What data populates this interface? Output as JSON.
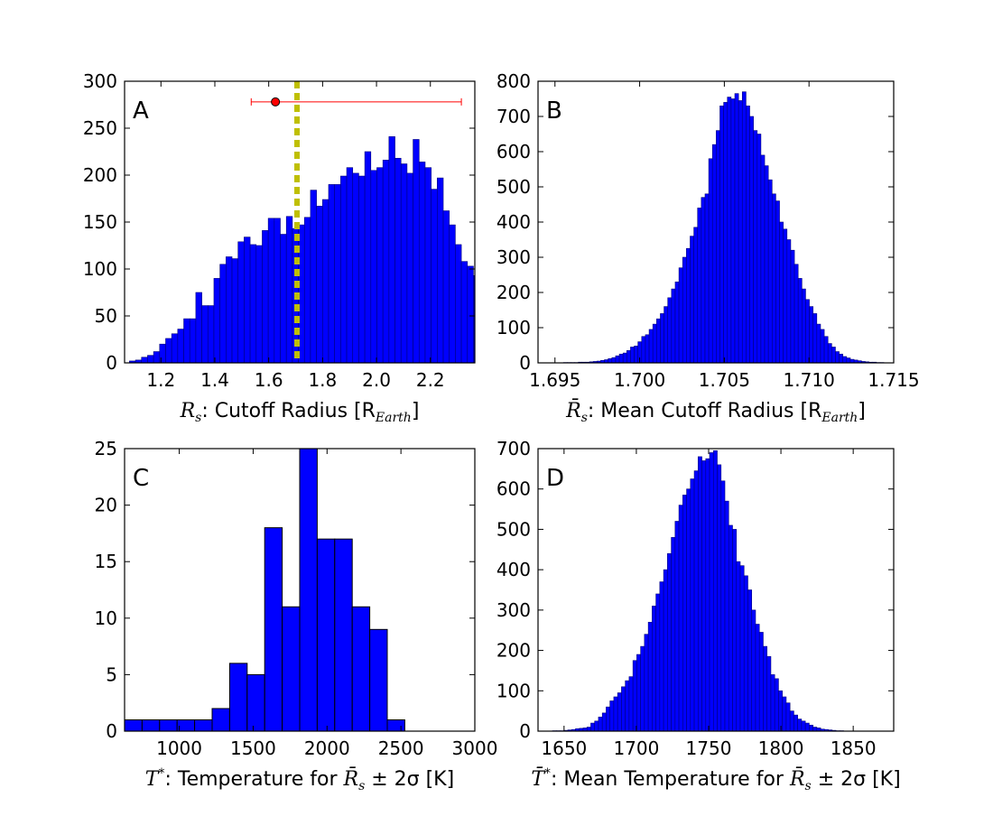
{
  "chart_data": [
    {
      "id": "A",
      "type": "bar",
      "panel_label": "A",
      "xlabel": {
        "math": "R",
        "sub": "s",
        "text": ": Cutoff Radius [R",
        "unit_sub": "Earth",
        "tail": "]"
      },
      "xlim": [
        1.065,
        2.365
      ],
      "ylim": [
        0,
        300
      ],
      "xticks": [
        1.2,
        1.4,
        1.6,
        1.8,
        2.0,
        2.2
      ],
      "xtick_labels": [
        "1.2",
        "1.4",
        "1.6",
        "1.8",
        "2.0",
        "2.2"
      ],
      "yticks": [
        0,
        50,
        100,
        150,
        200,
        250,
        300
      ],
      "ytick_labels": [
        "0",
        "50",
        "100",
        "150",
        "200",
        "250",
        "300"
      ],
      "bin_start": 1.083,
      "bin_width": 0.0224,
      "values": [
        2,
        3,
        6,
        8,
        12,
        20,
        26,
        31,
        36,
        47,
        47,
        75,
        61,
        61,
        90,
        105,
        113,
        111,
        129,
        134,
        126,
        125,
        141,
        154,
        154,
        137,
        156,
        143,
        147,
        155,
        184,
        167,
        174,
        190,
        190,
        199,
        208,
        202,
        199,
        225,
        205,
        208,
        216,
        241,
        218,
        212,
        202,
        238,
        214,
        208,
        185,
        197,
        162,
        147,
        126,
        108,
        103,
        93,
        65,
        48,
        32,
        20,
        14,
        9,
        7,
        5,
        4,
        4,
        3
      ],
      "reference_line": {
        "x": 1.705,
        "color": "#bfbf00",
        "style": "dashed"
      },
      "point": {
        "x": 1.625,
        "y": 278,
        "x_low": 1.535,
        "x_high": 2.315,
        "color": "#ff0000"
      }
    },
    {
      "id": "B",
      "type": "bar",
      "panel_label": "B",
      "xlabel": {
        "math": "R̄",
        "sub": "s",
        "text": ": Mean Cutoff Radius [R",
        "unit_sub": "Earth",
        "tail": "]"
      },
      "xlim": [
        1.694,
        1.715
      ],
      "ylim": [
        0,
        800
      ],
      "xticks": [
        1.695,
        1.7,
        1.705,
        1.71,
        1.715
      ],
      "xtick_labels": [
        "1.695",
        "1.700",
        "1.705",
        "1.710",
        "1.715"
      ],
      "yticks": [
        0,
        100,
        200,
        300,
        400,
        500,
        600,
        700,
        800
      ],
      "ytick_labels": [
        "0",
        "100",
        "200",
        "300",
        "400",
        "500",
        "600",
        "700",
        "800"
      ],
      "bin_start": 1.6955,
      "bin_width": 0.00022,
      "values": [
        1,
        1,
        1,
        1,
        2,
        2,
        2,
        3,
        4,
        5,
        7,
        9,
        12,
        15,
        20,
        25,
        28,
        35,
        45,
        48,
        60,
        75,
        80,
        95,
        110,
        125,
        140,
        160,
        185,
        210,
        230,
        270,
        300,
        325,
        360,
        385,
        440,
        470,
        480,
        580,
        620,
        660,
        730,
        740,
        755,
        750,
        765,
        745,
        770,
        730,
        700,
        660,
        650,
        590,
        560,
        520,
        480,
        460,
        400,
        380,
        350,
        320,
        280,
        240,
        210,
        180,
        160,
        140,
        110,
        95,
        75,
        55,
        45,
        32,
        25,
        18,
        14,
        10,
        8,
        6,
        4,
        3,
        2,
        2,
        1,
        1
      ]
    },
    {
      "id": "C",
      "type": "bar",
      "panel_label": "C",
      "xlabel": {
        "math": "T",
        "sup": "*",
        "text": ": Temperature for ",
        "math2": "R̄",
        "sub2": "s",
        "tail": " ± 2σ [K]"
      },
      "xlim": [
        630,
        3000
      ],
      "ylim": [
        0,
        25
      ],
      "xticks": [
        1000,
        1500,
        2000,
        2500,
        3000
      ],
      "xtick_labels": [
        "1000",
        "1500",
        "2000",
        "2500",
        "3000"
      ],
      "yticks": [
        0,
        5,
        10,
        15,
        20,
        25
      ],
      "ytick_labels": [
        "0",
        "5",
        "10",
        "15",
        "20",
        "25"
      ],
      "bin_start": 630,
      "bin_width": 118.5,
      "values": [
        1,
        1,
        1,
        1,
        1,
        2,
        6,
        5,
        18,
        11,
        25,
        17,
        17,
        11,
        9,
        1,
        0,
        0,
        0,
        0
      ]
    },
    {
      "id": "D",
      "type": "bar",
      "panel_label": "D",
      "xlabel": {
        "math": "T̄",
        "sup": "*",
        "text": ": Mean Temperature for ",
        "math2": "R̄",
        "sub2": "s",
        "tail": " ± 2σ [K]"
      },
      "xlim": [
        1632,
        1878
      ],
      "ylim": [
        0,
        700
      ],
      "xticks": [
        1650,
        1700,
        1750,
        1800,
        1850
      ],
      "xtick_labels": [
        "1650",
        "1700",
        "1750",
        "1800",
        "1850"
      ],
      "yticks": [
        0,
        100,
        200,
        300,
        400,
        500,
        600,
        700
      ],
      "ytick_labels": [
        "0",
        "100",
        "200",
        "300",
        "400",
        "500",
        "600",
        "700"
      ],
      "bin_start": 1642,
      "bin_width": 2.65,
      "values": [
        1,
        1,
        1,
        2,
        3,
        4,
        6,
        7,
        8,
        10,
        20,
        25,
        35,
        45,
        60,
        75,
        85,
        95,
        110,
        125,
        135,
        175,
        190,
        210,
        240,
        270,
        310,
        340,
        370,
        400,
        440,
        480,
        520,
        560,
        585,
        600,
        625,
        645,
        680,
        670,
        675,
        690,
        695,
        660,
        620,
        570,
        510,
        500,
        420,
        410,
        385,
        350,
        300,
        265,
        245,
        210,
        185,
        140,
        130,
        100,
        85,
        70,
        50,
        40,
        30,
        25,
        20,
        15,
        10,
        8,
        5,
        4,
        3,
        2,
        1,
        1
      ]
    }
  ]
}
